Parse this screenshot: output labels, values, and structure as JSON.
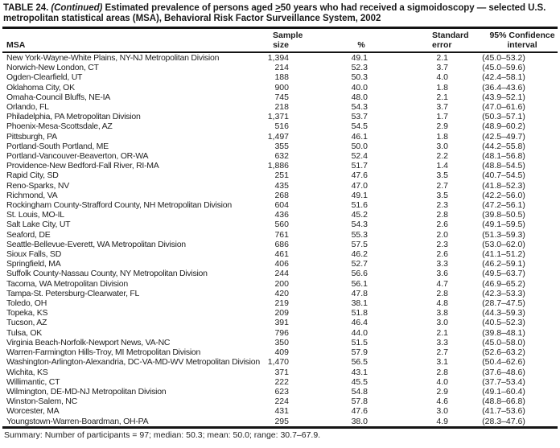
{
  "page": {
    "background_color": "#ffffff",
    "text_color": "#222222",
    "rule_color": "#141414"
  },
  "table": {
    "title": {
      "prefix": "TABLE 24.",
      "continued": "(Continued)",
      "body_before_geq": "Estimated prevalence of persons aged",
      "geq": ">",
      "body_after_geq": "50 years who had received a sigmoidoscopy — selected U.S. metropolitan statistical areas (MSA), Behavioral Risk Factor Surveillance System, 2002"
    },
    "header": {
      "msa": "MSA",
      "sample_line1": "Sample",
      "sample_line2": "size",
      "pct": "%",
      "se_line1": "Standard",
      "se_line2": "error",
      "ci_line1": "95% Confidence",
      "ci_line2": "interval"
    },
    "rows": [
      [
        "New York-Wayne-White Plains, NY-NJ Metropolitan Division",
        "1,394",
        "49.1",
        "2.1",
        "(45.0–53.2)"
      ],
      [
        "Norwich-New London, CT",
        "214",
        "52.3",
        "3.7",
        "(45.0–59.6)"
      ],
      [
        "Ogden-Clearfield, UT",
        "188",
        "50.3",
        "4.0",
        "(42.4–58.1)"
      ],
      [
        "Oklahoma City, OK",
        "900",
        "40.0",
        "1.8",
        "(36.4–43.6)"
      ],
      [
        "Omaha-Council Bluffs, NE-IA",
        "745",
        "48.0",
        "2.1",
        "(43.9–52.1)"
      ],
      [
        "Orlando, FL",
        "218",
        "54.3",
        "3.7",
        "(47.0–61.6)"
      ],
      [
        "Philadelphia, PA Metropolitan Division",
        "1,371",
        "53.7",
        "1.7",
        "(50.3–57.1)"
      ],
      [
        "Phoenix-Mesa-Scottsdale, AZ",
        "516",
        "54.5",
        "2.9",
        "(48.9–60.2)"
      ],
      [
        "Pittsburgh, PA",
        "1,497",
        "46.1",
        "1.8",
        "(42.5–49.7)"
      ],
      [
        "Portland-South Portland, ME",
        "355",
        "50.0",
        "3.0",
        "(44.2–55.8)"
      ],
      [
        "Portland-Vancouver-Beaverton, OR-WA",
        "632",
        "52.4",
        "2.2",
        "(48.1–56.8)"
      ],
      [
        "Providence-New Bedford-Fall River, RI-MA",
        "1,886",
        "51.7",
        "1.4",
        "(48.8–54.5)"
      ],
      [
        "Rapid City, SD",
        "251",
        "47.6",
        "3.5",
        "(40.7–54.5)"
      ],
      [
        "Reno-Sparks, NV",
        "435",
        "47.0",
        "2.7",
        "(41.8–52.3)"
      ],
      [
        "Richmond, VA",
        "268",
        "49.1",
        "3.5",
        "(42.2–56.0)"
      ],
      [
        "Rockingham County-Strafford County, NH Metropolitan Division",
        "604",
        "51.6",
        "2.3",
        "(47.2–56.1)"
      ],
      [
        "St. Louis, MO-IL",
        "436",
        "45.2",
        "2.8",
        "(39.8–50.5)"
      ],
      [
        "Salt Lake City, UT",
        "560",
        "54.3",
        "2.6",
        "(49.1–59.5)"
      ],
      [
        "Seaford, DE",
        "761",
        "55.3",
        "2.0",
        "(51.3–59.3)"
      ],
      [
        "Seattle-Bellevue-Everett, WA Metropolitan Division",
        "686",
        "57.5",
        "2.3",
        "(53.0–62.0)"
      ],
      [
        "Sioux Falls, SD",
        "461",
        "46.2",
        "2.6",
        "(41.1–51.2)"
      ],
      [
        "Springfield, MA",
        "406",
        "52.7",
        "3.3",
        "(46.2–59.1)"
      ],
      [
        "Suffolk County-Nassau County, NY Metropolitan Division",
        "244",
        "56.6",
        "3.6",
        "(49.5–63.7)"
      ],
      [
        "Tacoma, WA Metropolitan Division",
        "200",
        "56.1",
        "4.7",
        "(46.9–65.2)"
      ],
      [
        "Tampa-St. Petersburg-Clearwater, FL",
        "420",
        "47.8",
        "2.8",
        "(42.3–53.3)"
      ],
      [
        "Toledo, OH",
        "219",
        "38.1",
        "4.8",
        "(28.7–47.5)"
      ],
      [
        "Topeka, KS",
        "209",
        "51.8",
        "3.8",
        "(44.3–59.3)"
      ],
      [
        "Tucson, AZ",
        "391",
        "46.4",
        "3.0",
        "(40.5–52.3)"
      ],
      [
        "Tulsa, OK",
        "796",
        "44.0",
        "2.1",
        "(39.8–48.1)"
      ],
      [
        "Virginia Beach-Norfolk-Newport News, VA-NC",
        "350",
        "51.5",
        "3.3",
        "(45.0–58.0)"
      ],
      [
        "Warren-Farmington Hills-Troy, MI Metropolitan Division",
        "409",
        "57.9",
        "2.7",
        "(52.6–63.2)"
      ],
      [
        "Washington-Arlington-Alexandria, DC-VA-MD-WV Metropolitan Division",
        "1,470",
        "56.5",
        "3.1",
        "(50.4–62.6)"
      ],
      [
        "Wichita, KS",
        "371",
        "43.1",
        "2.8",
        "(37.6–48.6)"
      ],
      [
        "Willimantic, CT",
        "222",
        "45.5",
        "4.0",
        "(37.7–53.4)"
      ],
      [
        "Wilmington, DE-MD-NJ Metropolitan Division",
        "623",
        "54.8",
        "2.9",
        "(49.1–60.4)"
      ],
      [
        "Winston-Salem, NC",
        "224",
        "57.8",
        "4.6",
        "(48.8–66.8)"
      ],
      [
        "Worcester, MA",
        "431",
        "47.6",
        "3.0",
        "(41.7–53.6)"
      ],
      [
        "Youngstown-Warren-Boardman, OH-PA",
        "295",
        "38.0",
        "4.9",
        "(28.3–47.6)"
      ]
    ],
    "summary": "Summary: Number of participants = 97; median: 50.3; mean: 50.0; range: 30.7–67.9."
  }
}
